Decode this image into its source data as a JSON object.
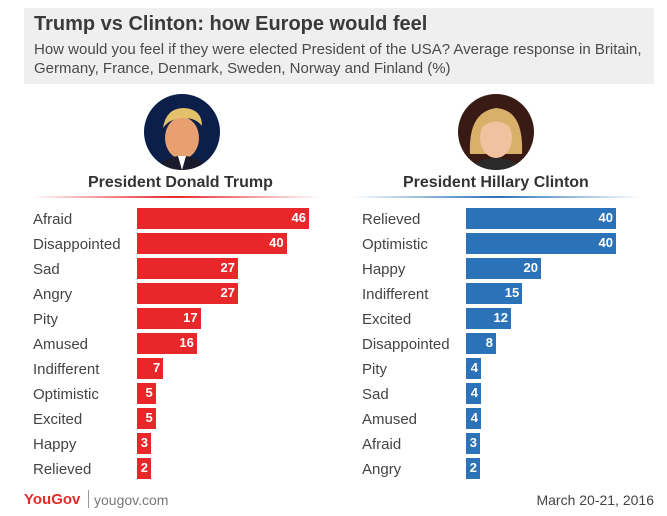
{
  "title": "Trump vs Clinton: how Europe would feel",
  "subtitle": "How would you feel if they were elected President of the USA? Average response in Britain, Germany, France, Denmark, Sweden, Norway and Finland (%)",
  "colors": {
    "trump": "#e8272b",
    "clinton": "#2b72b8"
  },
  "chart_data": [
    {
      "type": "bar",
      "orientation": "horizontal",
      "title": "President Donald Trump",
      "categories": [
        "Afraid",
        "Disappointed",
        "Sad",
        "Angry",
        "Pity",
        "Amused",
        "Indifferent",
        "Optimistic",
        "Excited",
        "Happy",
        "Relieved"
      ],
      "values": [
        46,
        40,
        27,
        27,
        17,
        16,
        7,
        5,
        5,
        3,
        2
      ],
      "color": "#e8272b"
    },
    {
      "type": "bar",
      "orientation": "horizontal",
      "title": "President Hillary Clinton",
      "categories": [
        "Relieved",
        "Optimistic",
        "Happy",
        "Indifferent",
        "Excited",
        "Disappointed",
        "Pity",
        "Sad",
        "Amused",
        "Afraid",
        "Angry"
      ],
      "values": [
        40,
        40,
        20,
        15,
        12,
        8,
        4,
        4,
        4,
        3,
        2
      ],
      "color": "#2b72b8"
    }
  ],
  "footer": {
    "logo": "YouGov",
    "url": "yougov.com",
    "date": "March 20-21, 2016"
  }
}
